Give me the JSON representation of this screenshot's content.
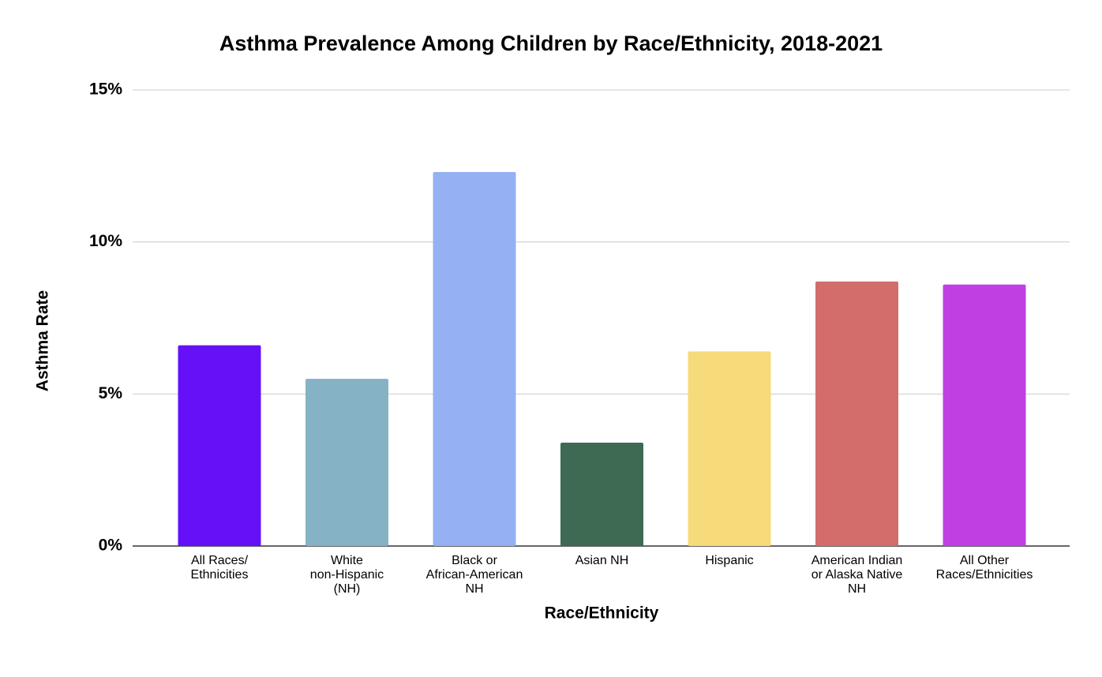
{
  "chart_data": {
    "type": "bar",
    "title": "Asthma Prevalence Among Children by Race/Ethnicity, 2018-2021",
    "x_label": "Race/Ethnicity",
    "y_label": "Asthma Rate",
    "categories": [
      "All Races/\nEthnicities",
      "White\nnon-Hispanic\n(NH)",
      "Black or\nAfrican-American\nNH",
      "Asian NH",
      "Hispanic",
      "American Indian\nor Alaska Native\nNH",
      "All Other\nRaces/Ethnicities"
    ],
    "values": [
      6.6,
      5.5,
      12.3,
      3.4,
      6.4,
      8.7,
      8.6
    ],
    "colors": [
      "#6610f7",
      "#85b2c5",
      "#95b1f3",
      "#3e6a53",
      "#f7da7a",
      "#d36d6b",
      "#c03fe3"
    ],
    "ylim": [
      0,
      15
    ],
    "yticks": [
      {
        "value": 0,
        "label": "0%"
      },
      {
        "value": 5,
        "label": "5%"
      },
      {
        "value": 10,
        "label": "10%"
      },
      {
        "value": 15,
        "label": "15%"
      }
    ],
    "grid": true
  }
}
